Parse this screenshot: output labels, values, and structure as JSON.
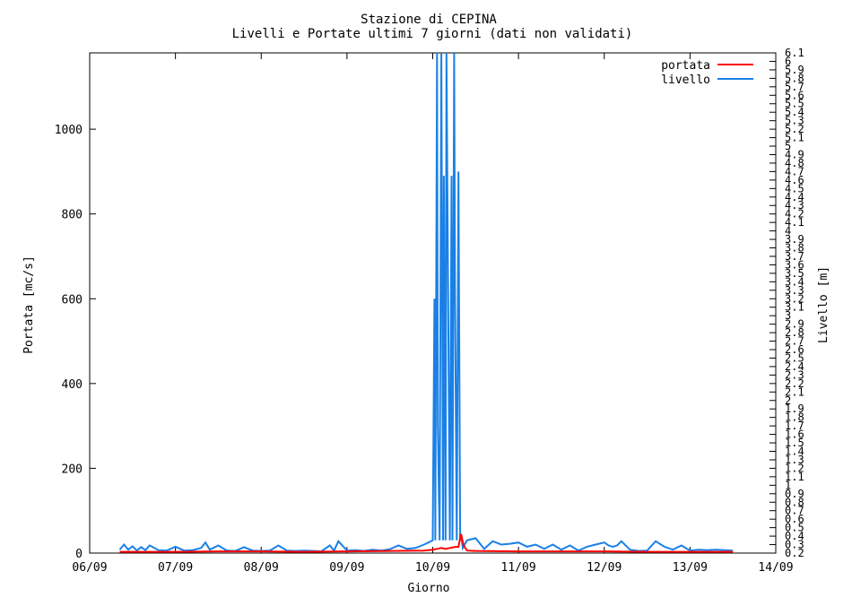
{
  "chart_data": {
    "type": "line",
    "title": "Stazione di CEPINA",
    "subtitle": "Livelli e Portate ultimi 7 giorni (dati non validati)",
    "xlabel": "Giorno",
    "ylabel": "Portata [mc/s]",
    "y2label": "Livello [m]",
    "x_ticks": [
      "06/09",
      "07/09",
      "08/09",
      "09/09",
      "10/09",
      "11/09",
      "12/09",
      "13/09",
      "14/09"
    ],
    "xlim": [
      0,
      8
    ],
    "ylim": [
      0,
      1180
    ],
    "y_ticks": [
      0,
      200,
      400,
      600,
      800,
      1000
    ],
    "y2lim": [
      0.2,
      6.1
    ],
    "y2_ticks": [
      "0.2",
      "0.3",
      "0.4",
      "0.5",
      "0.6",
      "0.7",
      "0.8",
      "0.9",
      "1",
      "1.1",
      "1.2",
      "1.3",
      "1.4",
      "1.5",
      "1.6",
      "1.7",
      "1.8",
      "1.9",
      "2",
      "2.1",
      "2.2",
      "2.3",
      "2.4",
      "2.5",
      "2.6",
      "2.7",
      "2.8",
      "2.9",
      "3",
      "3.1",
      "3.2",
      "3.3",
      "3.4",
      "3.5",
      "3.6",
      "3.7",
      "3.8",
      "3.9",
      "4",
      "4.1",
      "4.2",
      "4.3",
      "4.4",
      "4.5",
      "4.6",
      "4.7",
      "4.8",
      "4.9",
      "5",
      "5.1",
      "5.2",
      "5.3",
      "5.4",
      "5.5",
      "5.6",
      "5.7",
      "5.8",
      "5.9",
      "6",
      "6.1"
    ],
    "grid": false,
    "legend_position": "top-right",
    "series": [
      {
        "name": "portata",
        "color": "#ff0000",
        "axis": "left",
        "x": [
          0.35,
          1.0,
          1.5,
          2.0,
          2.5,
          3.0,
          3.5,
          3.9,
          4.0,
          4.05,
          4.1,
          4.15,
          4.2,
          4.25,
          4.3,
          4.33,
          4.36,
          4.4,
          4.5,
          5.0,
          5.5,
          6.0,
          6.5,
          7.0,
          7.5
        ],
        "values": [
          3,
          3,
          4,
          4,
          3,
          4,
          5,
          6,
          8,
          10,
          12,
          10,
          12,
          14,
          15,
          45,
          18,
          6,
          5,
          4,
          4,
          4,
          3,
          3,
          3
        ]
      },
      {
        "name": "livello",
        "color": "#1a80e6",
        "axis": "left",
        "x": [
          0.35,
          0.4,
          0.45,
          0.5,
          0.55,
          0.6,
          0.65,
          0.7,
          0.8,
          0.9,
          1.0,
          1.1,
          1.2,
          1.3,
          1.35,
          1.4,
          1.5,
          1.6,
          1.7,
          1.8,
          1.9,
          2.0,
          2.1,
          2.2,
          2.3,
          2.4,
          2.5,
          2.6,
          2.7,
          2.8,
          2.85,
          2.9,
          3.0,
          3.1,
          3.2,
          3.3,
          3.4,
          3.5,
          3.6,
          3.7,
          3.8,
          3.9,
          3.95,
          4.0,
          4.02,
          4.03,
          4.05,
          4.06,
          4.08,
          4.1,
          4.12,
          4.13,
          4.15,
          4.16,
          4.18,
          4.2,
          4.22,
          4.23,
          4.25,
          4.26,
          4.28,
          4.3,
          4.32,
          4.33,
          4.35,
          4.4,
          4.5,
          4.6,
          4.7,
          4.8,
          4.9,
          5.0,
          5.1,
          5.2,
          5.3,
          5.4,
          5.5,
          5.6,
          5.7,
          5.8,
          5.9,
          6.0,
          6.05,
          6.1,
          6.15,
          6.2,
          6.3,
          6.4,
          6.5,
          6.6,
          6.7,
          6.8,
          6.9,
          7.0,
          7.1,
          7.2,
          7.3,
          7.4,
          7.5
        ],
        "values": [
          8,
          20,
          8,
          16,
          6,
          14,
          7,
          18,
          7,
          6,
          15,
          6,
          7,
          12,
          25,
          8,
          18,
          6,
          5,
          14,
          6,
          5,
          6,
          18,
          6,
          5,
          6,
          5,
          4,
          18,
          6,
          28,
          6,
          7,
          5,
          8,
          6,
          9,
          18,
          10,
          12,
          20,
          25,
          30,
          600,
          30,
          1180,
          300,
          30,
          1180,
          30,
          890,
          30,
          1180,
          600,
          30,
          890,
          30,
          1180,
          600,
          30,
          900,
          30,
          45,
          12,
          30,
          35,
          10,
          28,
          20,
          22,
          25,
          15,
          20,
          10,
          20,
          8,
          18,
          6,
          15,
          20,
          25,
          18,
          15,
          18,
          28,
          8,
          5,
          6,
          28,
          15,
          8,
          18,
          6,
          8,
          7,
          8,
          7,
          6
        ]
      }
    ]
  }
}
